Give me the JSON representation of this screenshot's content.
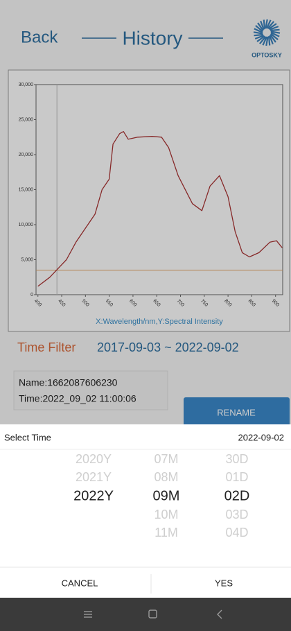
{
  "header": {
    "back": "Back",
    "title": "History",
    "logo": "OPTOSKY"
  },
  "chart_data": {
    "type": "line",
    "x": [
      400,
      425,
      460,
      480,
      500,
      520,
      535,
      550,
      558,
      572,
      580,
      590,
      610,
      640,
      660,
      675,
      695,
      725,
      745,
      762,
      782,
      800,
      815,
      830,
      845,
      865,
      888,
      902,
      914
    ],
    "values": [
      1200,
      2500,
      5000,
      7500,
      9500,
      11500,
      15000,
      16500,
      21500,
      23000,
      23300,
      22200,
      22500,
      22600,
      22500,
      21000,
      17000,
      13000,
      12000,
      15500,
      17000,
      14000,
      9000,
      6000,
      5400,
      6000,
      7500,
      7700,
      6700
    ],
    "color": "#a83232",
    "xlim": [
      396,
      915
    ],
    "ylim": [
      0,
      30000
    ],
    "xticks": [
      400,
      450,
      500,
      550,
      600,
      650,
      700,
      750,
      800,
      850,
      900
    ],
    "yticks": [
      0,
      {
        "value": 5000,
        "label": "5,000"
      },
      {
        "value": 10000,
        "label": "10,000"
      },
      {
        "value": 15000,
        "label": "15,000"
      },
      {
        "value": 20000,
        "label": "20,000"
      },
      {
        "value": 25000,
        "label": "25,000"
      },
      {
        "value": 30000,
        "label": "30,000"
      }
    ],
    "hline": 3500,
    "hline_color": "#e0a060",
    "vline": 440,
    "vline_color": "#bbbbbb",
    "xlabel": "X:Wavelength/nm,Y:Spectral Intensity"
  },
  "filter": {
    "label": "Time Filter",
    "range": "2017-09-03 ~ 2022-09-02"
  },
  "records": [
    {
      "name": "Name:1662087606230",
      "time": "Time:2022_09_02 11:00:06"
    }
  ],
  "rename": "RENAME",
  "picker": {
    "title": "Select Time",
    "value": "2022-09-02",
    "years": [
      "2020Y",
      "2021Y",
      "2022Y"
    ],
    "months": [
      "07M",
      "08M",
      "09M",
      "10M",
      "11M"
    ],
    "days": [
      "30D",
      "01D",
      "02D",
      "03D",
      "04D"
    ],
    "selected": {
      "years": 2,
      "months": 2,
      "days": 2
    },
    "cancel": "CANCEL",
    "ok": "YES"
  }
}
